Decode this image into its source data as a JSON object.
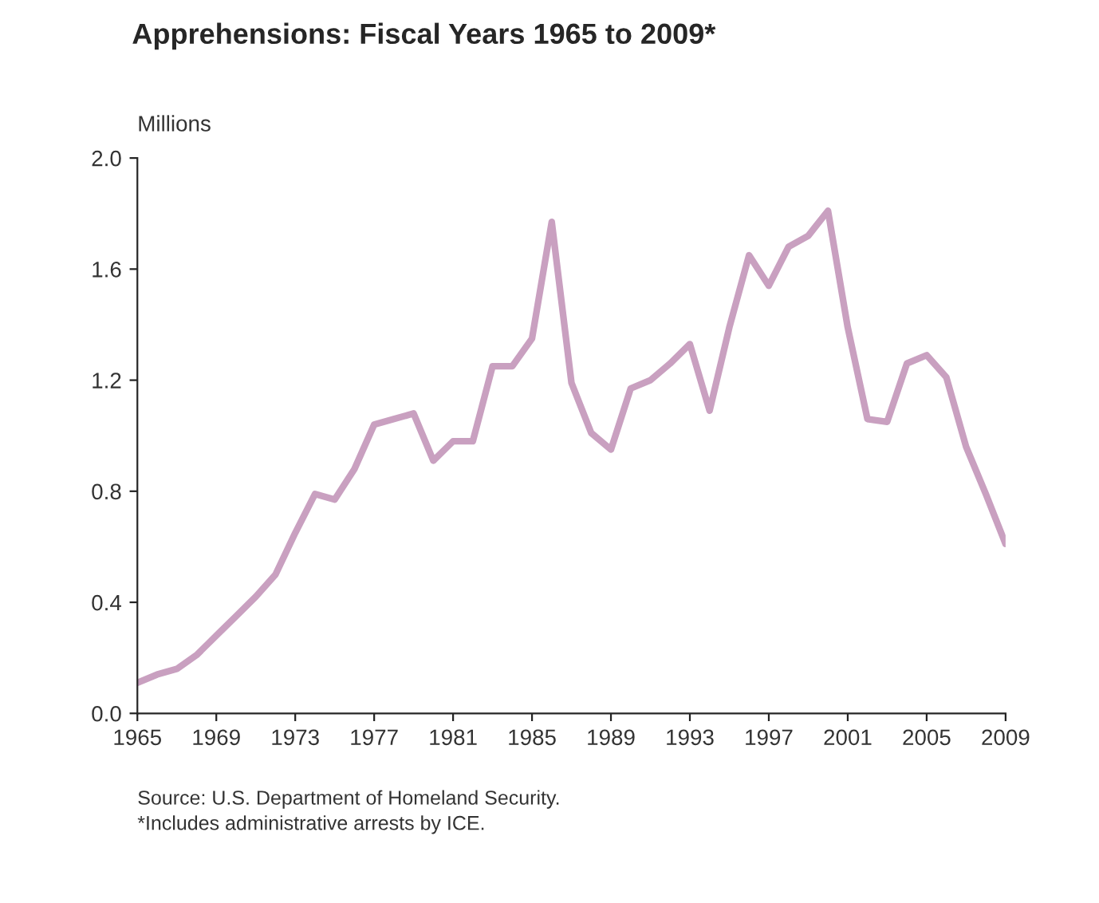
{
  "chart_data": {
    "type": "line",
    "title": "Apprehensions: Fiscal Years 1965 to 2009*",
    "ylabel": "Millions",
    "x": [
      1965,
      1966,
      1967,
      1968,
      1969,
      1970,
      1971,
      1972,
      1973,
      1974,
      1975,
      1976,
      1977,
      1978,
      1979,
      1980,
      1981,
      1982,
      1983,
      1984,
      1985,
      1986,
      1987,
      1988,
      1989,
      1990,
      1991,
      1992,
      1993,
      1994,
      1995,
      1996,
      1997,
      1998,
      1999,
      2000,
      2001,
      2002,
      2003,
      2004,
      2005,
      2006,
      2007,
      2008,
      2009
    ],
    "series": [
      {
        "color": "#c9a0c0",
        "values": [
          0.11,
          0.14,
          0.16,
          0.21,
          0.28,
          0.35,
          0.42,
          0.5,
          0.65,
          0.79,
          0.77,
          0.88,
          1.04,
          1.06,
          1.08,
          0.91,
          0.98,
          0.98,
          1.25,
          1.25,
          1.35,
          1.77,
          1.19,
          1.01,
          0.95,
          1.17,
          1.2,
          1.26,
          1.33,
          1.09,
          1.39,
          1.65,
          1.54,
          1.68,
          1.72,
          1.81,
          1.39,
          1.06,
          1.05,
          1.26,
          1.29,
          1.21,
          0.96,
          0.79,
          0.61
        ]
      }
    ],
    "xlim": [
      1965,
      2009
    ],
    "xticks": [
      1965,
      1969,
      1973,
      1977,
      1981,
      1985,
      1989,
      1993,
      1997,
      2001,
      2005,
      2009
    ],
    "ylim": [
      0,
      2.0
    ],
    "yticks": [
      {
        "value": 0,
        "label": "0.0"
      },
      {
        "value": 0.4,
        "label": "0.4"
      },
      {
        "value": 0.8,
        "label": "0.8"
      },
      {
        "value": 1.2,
        "label": "1.2"
      },
      {
        "value": 1.6,
        "label": "1.6"
      },
      {
        "value": 2.0,
        "label": "2.0"
      }
    ],
    "grid": false,
    "legend": false,
    "annotations": [
      "Source: U.S. Department of Homeland Security.",
      "*Includes administrative arrests by ICE."
    ]
  }
}
